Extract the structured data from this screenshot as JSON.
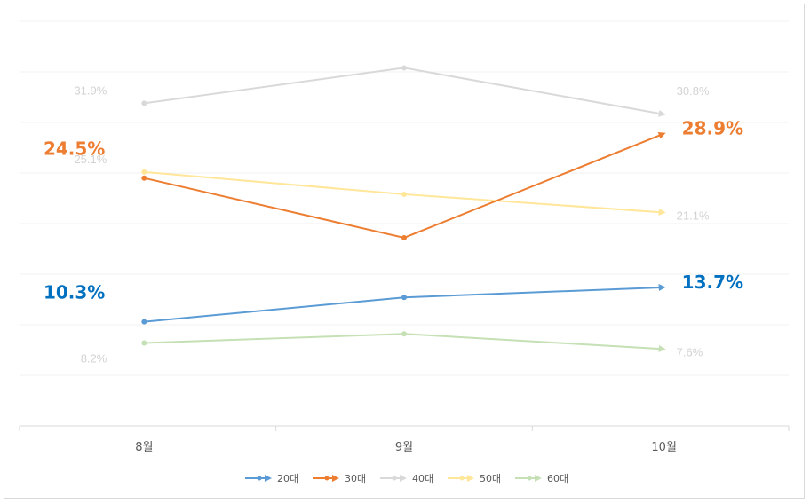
{
  "chart_data": {
    "type": "line",
    "categories": [
      "8월",
      "9월",
      "10월"
    ],
    "ylim": [
      0,
      40
    ],
    "grid": true,
    "legend_position": "bottom",
    "series": [
      {
        "name": "20대",
        "values": [
          10.3,
          12.7,
          13.7
        ],
        "color": "#5b9bd5",
        "label_color": "#0070c0",
        "emphasis": true,
        "labels": {
          "start": "10.3%",
          "end": "13.7%"
        }
      },
      {
        "name": "30대",
        "values": [
          24.5,
          18.6,
          28.9
        ],
        "color": "#ed7d31",
        "label_color": "#ed7d31",
        "emphasis": true,
        "labels": {
          "start": "24.5%",
          "end": "28.9%"
        }
      },
      {
        "name": "40대",
        "values": [
          31.9,
          35.4,
          30.8
        ],
        "color": "#d9d9d9",
        "label_color": "#d3d3d3",
        "emphasis": false,
        "labels": {
          "start": "31.9%",
          "end": "30.8%"
        }
      },
      {
        "name": "50대",
        "values": [
          25.1,
          22.9,
          21.1
        ],
        "color": "#ffe699",
        "label_color": "#d3d3d3",
        "emphasis": false,
        "labels": {
          "start": "25.1%",
          "end": "21.1%"
        }
      },
      {
        "name": "60대",
        "values": [
          8.2,
          9.1,
          7.6
        ],
        "color": "#c5e0b4",
        "label_color": "#d3d3d3",
        "emphasis": false,
        "labels": {
          "start": "8.2%",
          "end": "7.6%"
        }
      }
    ]
  }
}
